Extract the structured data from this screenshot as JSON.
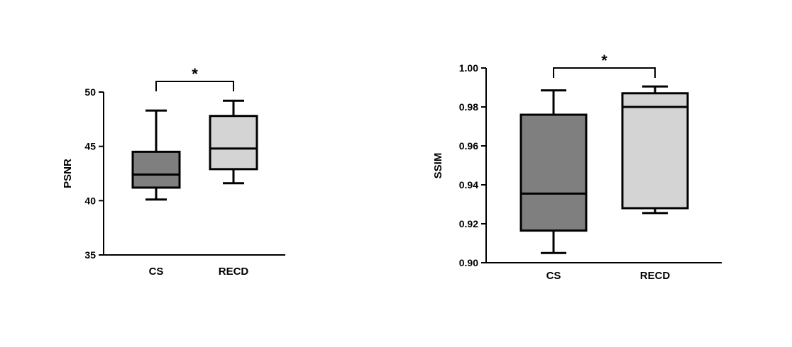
{
  "chart_data": [
    {
      "type": "box",
      "ylabel": "PSNR",
      "ylim": [
        35,
        50
      ],
      "yticks": [
        35,
        40,
        45,
        50
      ],
      "ytick_labels": [
        "35",
        "40",
        "45",
        "50"
      ],
      "categories": [
        "CS",
        "RECD"
      ],
      "boxes": [
        {
          "category": "CS",
          "min": 40.1,
          "q1": 41.2,
          "median": 42.4,
          "q3": 44.5,
          "max": 48.3,
          "color": "#7f7f7f"
        },
        {
          "category": "RECD",
          "min": 41.6,
          "q1": 42.9,
          "median": 44.8,
          "q3": 47.8,
          "max": 49.2,
          "color": "#d4d4d4"
        }
      ],
      "significance": {
        "label": "*",
        "y": 49.5
      }
    },
    {
      "type": "box",
      "ylabel": "SSIM",
      "ylim": [
        0.9,
        1.0
      ],
      "yticks": [
        0.9,
        0.92,
        0.94,
        0.96,
        0.98,
        1.0
      ],
      "ytick_labels": [
        "0.90",
        "0.92",
        "0.94",
        "0.96",
        "0.98",
        "1.00"
      ],
      "categories": [
        "CS",
        "RECD"
      ],
      "boxes": [
        {
          "category": "CS",
          "min": 0.905,
          "q1": 0.9165,
          "median": 0.9355,
          "q3": 0.976,
          "max": 0.9885,
          "color": "#7f7f7f"
        },
        {
          "category": "RECD",
          "min": 0.9255,
          "q1": 0.928,
          "median": 0.98,
          "q3": 0.987,
          "max": 0.9905,
          "color": "#d4d4d4"
        }
      ],
      "significance": {
        "label": "*",
        "y": 1.0
      }
    }
  ]
}
